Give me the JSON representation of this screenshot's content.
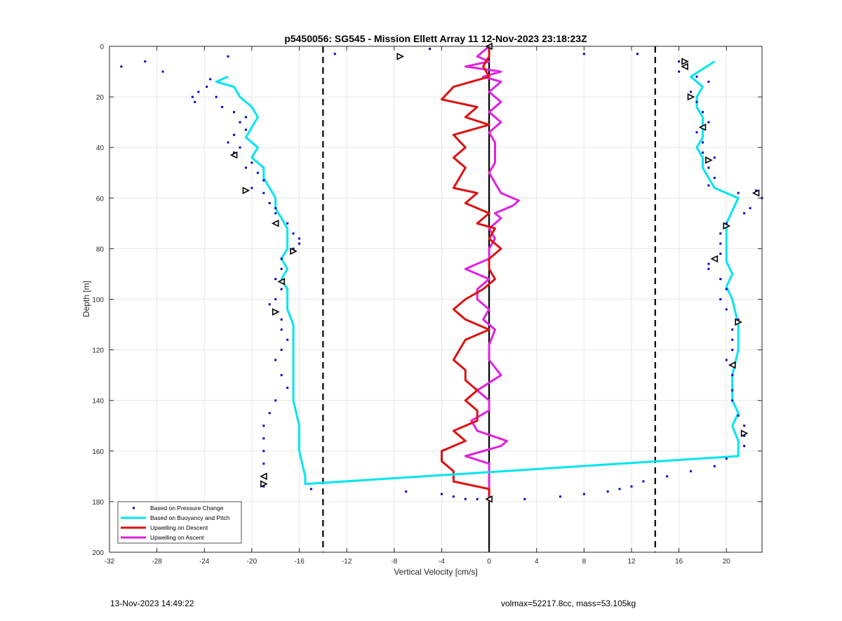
{
  "chart_data": {
    "type": "line",
    "title": "p5450056: SG545 - Mission Ellett Array 11 12-Nov-2023 23:18:23Z",
    "xlabel": "Vertical Velocity [cm/s]",
    "ylabel": "Depth [m]",
    "xlim": [
      -32,
      23
    ],
    "ylim": [
      0,
      200
    ],
    "y_reversed": true,
    "grid": true,
    "x_ticks": [
      "-32",
      "-28",
      "-24",
      "-20",
      "-16",
      "-12",
      "-8",
      "-4",
      "0",
      "4",
      "8",
      "12",
      "16",
      "20"
    ],
    "y_ticks": [
      "0",
      "20",
      "40",
      "60",
      "80",
      "100",
      "120",
      "140",
      "160",
      "180",
      "200"
    ],
    "legend_position": "bottom-left",
    "legend": [
      "Based on Pressure Change",
      "Based on Buoyancy and Pitch",
      "Upwelling on Descent",
      "Upwelling on Ascent"
    ],
    "reference_lines": {
      "dashed_x": [
        -14,
        14
      ],
      "solid_x": [
        0
      ]
    },
    "series": [
      {
        "name": "Based on Buoyancy and Pitch",
        "color": "#00e5ee",
        "points": [
          [
            -22,
            12
          ],
          [
            -23,
            14
          ],
          [
            -21.5,
            16
          ],
          [
            -21,
            20
          ],
          [
            -20,
            24
          ],
          [
            -19.5,
            28
          ],
          [
            -20,
            32
          ],
          [
            -20.5,
            36
          ],
          [
            -19.5,
            40
          ],
          [
            -20,
            44
          ],
          [
            -19,
            48
          ],
          [
            -19,
            52
          ],
          [
            -18.5,
            56
          ],
          [
            -18,
            60
          ],
          [
            -18,
            64
          ],
          [
            -17.5,
            68
          ],
          [
            -17,
            72
          ],
          [
            -17,
            76
          ],
          [
            -17,
            80
          ],
          [
            -17.5,
            84
          ],
          [
            -17,
            88
          ],
          [
            -17.5,
            92
          ],
          [
            -17,
            96
          ],
          [
            -17,
            100
          ],
          [
            -17,
            104
          ],
          [
            -16.5,
            110
          ],
          [
            -16.5,
            120
          ],
          [
            -16.5,
            130
          ],
          [
            -16.5,
            140
          ],
          [
            -16,
            150
          ],
          [
            -16,
            160
          ],
          [
            -15.5,
            170
          ],
          [
            -15.5,
            173
          ],
          [
            21,
            162
          ],
          [
            21,
            156
          ],
          [
            20.5,
            150
          ],
          [
            21,
            145
          ],
          [
            20.5,
            140
          ],
          [
            20.5,
            130
          ],
          [
            21,
            120
          ],
          [
            21,
            110
          ],
          [
            20.5,
            100
          ],
          [
            20,
            95
          ],
          [
            20.5,
            90
          ],
          [
            20,
            85
          ],
          [
            20,
            75
          ],
          [
            20,
            70
          ],
          [
            20.5,
            65
          ],
          [
            21,
            60
          ],
          [
            20,
            58
          ],
          [
            19,
            56
          ],
          [
            18.5,
            52
          ],
          [
            18,
            48
          ],
          [
            18,
            44
          ],
          [
            17.5,
            40
          ],
          [
            18,
            36
          ],
          [
            18,
            32
          ],
          [
            18,
            28
          ],
          [
            17.5,
            24
          ],
          [
            17.5,
            20
          ],
          [
            18,
            16
          ],
          [
            17,
            12
          ],
          [
            19,
            6
          ]
        ]
      },
      {
        "name": "Upwelling on Descent",
        "color": "#dd1111",
        "points": [
          [
            0,
            0
          ],
          [
            0,
            4
          ],
          [
            -0.5,
            8
          ],
          [
            0,
            12
          ],
          [
            -3,
            16
          ],
          [
            -4,
            21
          ],
          [
            -1,
            24
          ],
          [
            -2,
            28
          ],
          [
            0,
            31
          ],
          [
            -3,
            35
          ],
          [
            -2,
            40
          ],
          [
            -3,
            44
          ],
          [
            -2,
            48
          ],
          [
            -2.5,
            52
          ],
          [
            -3,
            56
          ],
          [
            -1,
            58
          ],
          [
            -2,
            62
          ],
          [
            0,
            66
          ],
          [
            -1,
            70
          ],
          [
            0.5,
            72
          ],
          [
            0,
            76
          ],
          [
            1,
            80
          ],
          [
            0,
            84
          ],
          [
            0,
            88
          ],
          [
            0.5,
            92
          ],
          [
            -0.5,
            96
          ],
          [
            -2,
            100
          ],
          [
            -3,
            104
          ],
          [
            -2,
            108
          ],
          [
            0,
            112
          ],
          [
            -2,
            116
          ],
          [
            -2.5,
            120
          ],
          [
            -3,
            124
          ],
          [
            -2,
            128
          ],
          [
            -2,
            132
          ],
          [
            -1,
            136
          ],
          [
            -2,
            140
          ],
          [
            -1,
            144
          ],
          [
            -1,
            148
          ],
          [
            -3,
            152
          ],
          [
            -2,
            156
          ],
          [
            -4,
            160
          ],
          [
            -4,
            164
          ],
          [
            -3,
            168
          ],
          [
            -3,
            172
          ],
          [
            0,
            175
          ],
          [
            0,
            180
          ]
        ]
      },
      {
        "name": "Upwelling on Ascent",
        "color": "#e020e0",
        "points": [
          [
            0,
            180
          ],
          [
            0,
            170
          ],
          [
            0,
            165
          ],
          [
            -2,
            162
          ],
          [
            1,
            158
          ],
          [
            1.5,
            156
          ],
          [
            -1,
            152
          ],
          [
            -1.5,
            148
          ],
          [
            0,
            144
          ],
          [
            0,
            140
          ],
          [
            -1,
            136
          ],
          [
            1,
            130
          ],
          [
            0,
            124
          ],
          [
            0,
            118
          ],
          [
            0.5,
            112
          ],
          [
            -0.5,
            108
          ],
          [
            0,
            104
          ],
          [
            -1,
            100
          ],
          [
            -1,
            96
          ],
          [
            0,
            92
          ],
          [
            -2,
            88
          ],
          [
            0,
            84
          ],
          [
            0,
            80
          ],
          [
            0.5,
            76
          ],
          [
            0,
            72
          ],
          [
            1,
            68
          ],
          [
            0.5,
            66
          ],
          [
            2,
            63
          ],
          [
            2.5,
            61
          ],
          [
            1,
            58
          ],
          [
            0.5,
            54
          ],
          [
            0,
            50
          ],
          [
            0.5,
            46
          ],
          [
            0.5,
            42
          ],
          [
            0.5,
            38
          ],
          [
            0,
            34
          ],
          [
            1,
            30
          ],
          [
            0,
            26
          ],
          [
            1,
            22
          ],
          [
            0,
            18
          ],
          [
            1,
            14
          ],
          [
            -0.5,
            12
          ],
          [
            1,
            10
          ],
          [
            -2,
            8
          ],
          [
            0,
            6
          ],
          [
            -1,
            4
          ],
          [
            0,
            0
          ]
        ]
      }
    ],
    "pressure_change_points": [
      [
        -31,
        8
      ],
      [
        -29,
        6
      ],
      [
        -27.5,
        10
      ],
      [
        -22,
        4
      ],
      [
        -23.5,
        13
      ],
      [
        -23.8,
        16
      ],
      [
        -24.5,
        18
      ],
      [
        -25,
        20
      ],
      [
        -24.8,
        22
      ],
      [
        -23,
        20
      ],
      [
        -22.5,
        24
      ],
      [
        -21.5,
        26
      ],
      [
        -20.5,
        28
      ],
      [
        -21,
        30
      ],
      [
        -20.5,
        33
      ],
      [
        -21.5,
        35
      ],
      [
        -22,
        38
      ],
      [
        -21,
        40
      ],
      [
        -21.5,
        42
      ],
      [
        -20,
        46
      ],
      [
        -20.5,
        48
      ],
      [
        -19.5,
        50
      ],
      [
        -19,
        53
      ],
      [
        -20,
        56
      ],
      [
        -19,
        58
      ],
      [
        -18.5,
        62
      ],
      [
        -18,
        64
      ],
      [
        -18,
        66
      ],
      [
        -17,
        70
      ],
      [
        -16.5,
        74
      ],
      [
        -16,
        76
      ],
      [
        -16,
        78
      ],
      [
        -16.5,
        80
      ],
      [
        -17.5,
        84
      ],
      [
        -17.5,
        88
      ],
      [
        -18,
        92
      ],
      [
        -17.5,
        96
      ],
      [
        -18,
        100
      ],
      [
        -18.5,
        102
      ],
      [
        -17.5,
        108
      ],
      [
        -17.5,
        112
      ],
      [
        -17,
        116
      ],
      [
        -17.5,
        120
      ],
      [
        -18,
        124
      ],
      [
        -17.5,
        130
      ],
      [
        -17,
        135
      ],
      [
        -18,
        140
      ],
      [
        -18.5,
        145
      ],
      [
        -19,
        150
      ],
      [
        -19,
        155
      ],
      [
        -19,
        160
      ],
      [
        -19,
        165
      ],
      [
        -19,
        170
      ],
      [
        -19,
        174
      ],
      [
        -15,
        175
      ],
      [
        -7,
        176
      ],
      [
        -4,
        177
      ],
      [
        -3,
        178
      ],
      [
        -2,
        179
      ],
      [
        -1,
        179
      ],
      [
        0,
        179
      ],
      [
        3,
        179
      ],
      [
        6,
        178
      ],
      [
        8,
        177
      ],
      [
        10,
        176
      ],
      [
        11,
        175
      ],
      [
        12,
        174
      ],
      [
        13,
        172
      ],
      [
        15,
        170
      ],
      [
        17,
        168
      ],
      [
        19,
        166
      ],
      [
        20,
        163
      ],
      [
        -13,
        3
      ],
      [
        -5,
        1
      ],
      [
        8,
        3
      ],
      [
        12.5,
        3
      ],
      [
        16,
        6
      ],
      [
        16.5,
        8
      ],
      [
        16,
        10
      ],
      [
        17.5,
        12
      ],
      [
        18.5,
        14
      ],
      [
        17,
        18
      ],
      [
        17.5,
        22
      ],
      [
        18,
        26
      ],
      [
        18.5,
        30
      ],
      [
        17.5,
        34
      ],
      [
        18,
        38
      ],
      [
        18,
        42
      ],
      [
        19,
        44
      ],
      [
        18.5,
        48
      ],
      [
        19,
        52
      ],
      [
        18.5,
        55
      ],
      [
        21,
        58
      ],
      [
        22.5,
        57
      ],
      [
        23,
        60
      ],
      [
        22,
        64
      ],
      [
        21.5,
        66
      ],
      [
        20,
        70
      ],
      [
        19.5,
        74
      ],
      [
        19.5,
        78
      ],
      [
        19.5,
        82
      ],
      [
        18.5,
        86
      ],
      [
        18.5,
        88
      ],
      [
        19.5,
        92
      ],
      [
        20,
        96
      ],
      [
        19.5,
        100
      ],
      [
        20,
        104
      ],
      [
        21,
        108
      ],
      [
        20.5,
        112
      ],
      [
        20.5,
        116
      ],
      [
        20.5,
        120
      ],
      [
        20,
        124
      ],
      [
        20.5,
        130
      ],
      [
        20.5,
        136
      ],
      [
        20.5,
        140
      ],
      [
        21,
        146
      ],
      [
        21.5,
        150
      ],
      [
        21.5,
        154
      ],
      [
        21.5,
        158
      ]
    ],
    "triangle_markers": [
      [
        0,
        0
      ],
      [
        -7.5,
        4
      ],
      [
        -21.5,
        43
      ],
      [
        -20.5,
        57
      ],
      [
        -18,
        70
      ],
      [
        -16.5,
        81
      ],
      [
        -17.5,
        93
      ],
      [
        -18,
        105
      ],
      [
        -19,
        170
      ],
      [
        -19,
        173
      ],
      [
        0,
        179
      ],
      [
        16.5,
        6
      ],
      [
        16.5,
        8
      ],
      [
        17,
        20
      ],
      [
        18,
        32
      ],
      [
        18.5,
        45
      ],
      [
        22.5,
        58
      ],
      [
        20,
        71
      ],
      [
        19,
        84
      ],
      [
        21,
        109
      ],
      [
        20.5,
        126
      ],
      [
        21.5,
        153
      ]
    ]
  },
  "footer": {
    "left": "13-Nov-2023 14:49:22",
    "right": "volmax=52217.8cc, mass=53.105kg"
  },
  "colors": {
    "pressure_points": "#0000cc",
    "buoyancy": "#00e5ee",
    "descent": "#dd1111",
    "ascent": "#e020e0"
  }
}
